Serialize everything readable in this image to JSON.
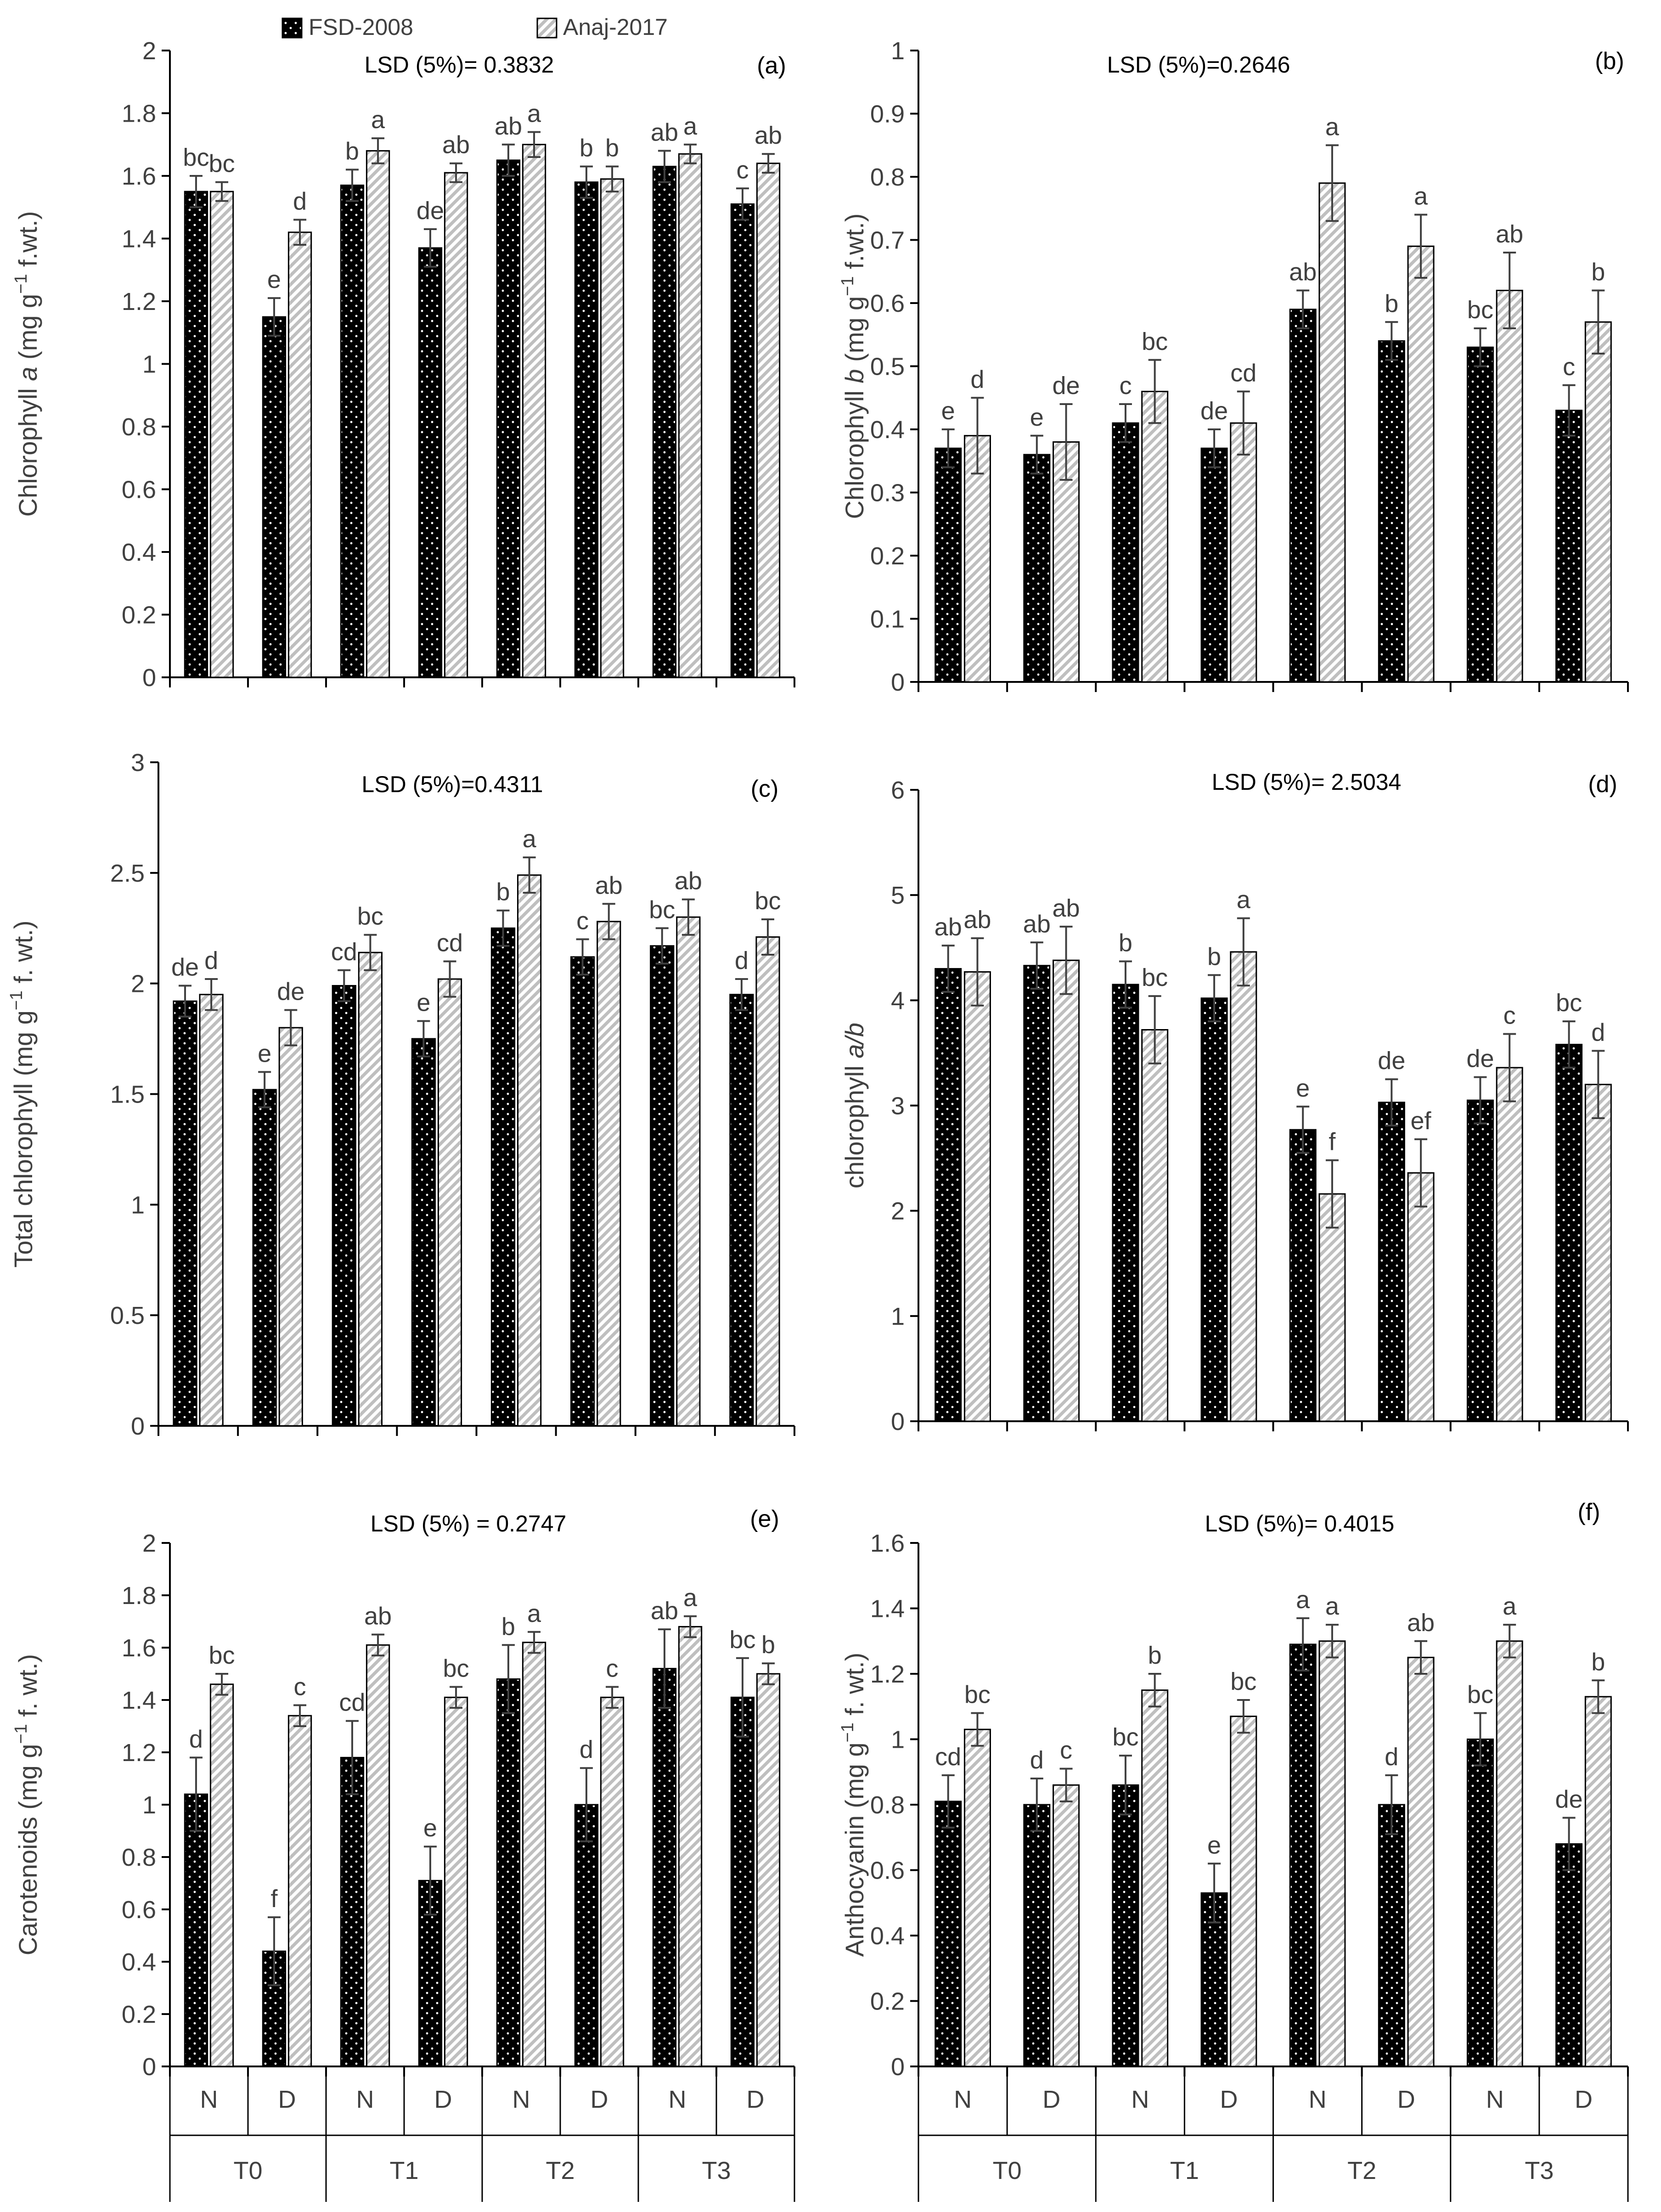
{
  "legend": {
    "series_a": "FSD-2008",
    "series_b": "Anaj-2017"
  },
  "colors": {
    "fsd_fill": "#000000",
    "anaj_fill": "#bfbfbf",
    "axis": "#000000",
    "text": "#404040"
  },
  "category_axis": {
    "treatments": [
      "N",
      "D",
      "N",
      "D",
      "N",
      "D",
      "N",
      "D"
    ],
    "groups": [
      "T0",
      "T1",
      "T2",
      "T3"
    ]
  },
  "chart_data": [
    {
      "id": "a",
      "type": "bar",
      "panel_label": "(a)",
      "lsd": "LSD (5%)= 0.3832",
      "ylabel_pre": "Chlorophyll ",
      "ylabel_ital": "a",
      "ylabel_post": " (mg g",
      "ylabel_sup": "−1",
      "ylabel_end": " f.wt.)",
      "ylim": [
        0,
        2
      ],
      "ticks": [
        "0",
        "0.2",
        "0.4",
        "0.6",
        "0.8",
        "1",
        "1.2",
        "1.4",
        "1.6",
        "1.8",
        "2"
      ],
      "categories": [
        "T0-N",
        "T0-D",
        "T1-N",
        "T1-D",
        "T2-N",
        "T2-D",
        "T3-N",
        "T3-D"
      ],
      "series": [
        {
          "name": "FSD-2008",
          "values": [
            1.55,
            1.15,
            1.57,
            1.37,
            1.65,
            1.58,
            1.63,
            1.51
          ],
          "errors": [
            0.05,
            0.06,
            0.05,
            0.06,
            0.05,
            0.05,
            0.05,
            0.05
          ],
          "letters": [
            "bc",
            "e",
            "b",
            "de",
            "ab",
            "b",
            "ab",
            "c"
          ]
        },
        {
          "name": "Anaj-2017",
          "values": [
            1.55,
            1.42,
            1.68,
            1.61,
            1.7,
            1.59,
            1.67,
            1.64
          ],
          "errors": [
            0.03,
            0.04,
            0.04,
            0.03,
            0.04,
            0.04,
            0.03,
            0.03
          ],
          "letters": [
            "bc",
            "d",
            "a",
            "ab",
            "a",
            "b",
            "a",
            "ab"
          ]
        }
      ]
    },
    {
      "id": "b",
      "type": "bar",
      "panel_label": "(b)",
      "lsd": "LSD (5%)=0.2646",
      "ylabel_pre": "Chlorophyll ",
      "ylabel_ital": "b",
      "ylabel_post": " (mg g",
      "ylabel_sup": "−1",
      "ylabel_end": " f.wt.)",
      "ylim": [
        0,
        1
      ],
      "ticks": [
        "0",
        "0.1",
        "0.2",
        "0.3",
        "0.4",
        "0.5",
        "0.6",
        "0.7",
        "0.8",
        "0.9",
        "1"
      ],
      "categories": [
        "T0-N",
        "T0-D",
        "T1-N",
        "T1-D",
        "T2-N",
        "T2-D",
        "T3-N",
        "T3-D"
      ],
      "series": [
        {
          "name": "FSD-2008",
          "values": [
            0.37,
            0.36,
            0.41,
            0.37,
            0.59,
            0.54,
            0.53,
            0.43
          ],
          "errors": [
            0.03,
            0.03,
            0.03,
            0.03,
            0.03,
            0.03,
            0.03,
            0.04
          ],
          "letters": [
            "e",
            "e",
            "c",
            "de",
            "ab",
            "b",
            "bc",
            "c"
          ]
        },
        {
          "name": "Anaj-2017",
          "values": [
            0.39,
            0.38,
            0.46,
            0.41,
            0.79,
            0.69,
            0.62,
            0.57
          ],
          "errors": [
            0.06,
            0.06,
            0.05,
            0.05,
            0.06,
            0.05,
            0.06,
            0.05
          ],
          "letters": [
            "d",
            "de",
            "bc",
            "cd",
            "a",
            "a",
            "ab",
            "b"
          ]
        }
      ]
    },
    {
      "id": "c",
      "type": "bar",
      "panel_label": "(c)",
      "lsd": "LSD (5%)=0.4311",
      "ylabel_pre": "Total chlorophyll (mg g",
      "ylabel_ital": "",
      "ylabel_post": "",
      "ylabel_sup": "−1",
      "ylabel_end": " f. wt.)",
      "ylim": [
        0,
        3
      ],
      "ticks": [
        "0",
        "0.5",
        "1",
        "1.5",
        "2",
        "2.5",
        "3"
      ],
      "categories": [
        "T0-N",
        "T0-D",
        "T1-N",
        "T1-D",
        "T2-N",
        "T2-D",
        "T3-N",
        "T3-D"
      ],
      "series": [
        {
          "name": "FSD-2008",
          "values": [
            1.92,
            1.52,
            1.99,
            1.75,
            2.25,
            2.12,
            2.17,
            1.95
          ],
          "errors": [
            0.07,
            0.08,
            0.07,
            0.08,
            0.08,
            0.08,
            0.08,
            0.07
          ],
          "letters": [
            "de",
            "e",
            "cd",
            "e",
            "b",
            "c",
            "bc",
            "d"
          ]
        },
        {
          "name": "Anaj-2017",
          "values": [
            1.95,
            1.8,
            2.14,
            2.02,
            2.49,
            2.28,
            2.3,
            2.21
          ],
          "errors": [
            0.07,
            0.08,
            0.08,
            0.08,
            0.08,
            0.08,
            0.08,
            0.08
          ],
          "letters": [
            "d",
            "de",
            "bc",
            "cd",
            "a",
            "ab",
            "ab",
            "bc"
          ]
        }
      ]
    },
    {
      "id": "d",
      "type": "bar",
      "panel_label": "(d)",
      "lsd": "LSD (5%)= 2.5034",
      "ylabel_pre": "chlorophyll ",
      "ylabel_ital": "a/b",
      "ylabel_post": "",
      "ylabel_sup": "",
      "ylabel_end": "",
      "ylim": [
        0,
        6
      ],
      "ticks": [
        "0",
        "1",
        "2",
        "3",
        "4",
        "5",
        "6"
      ],
      "categories": [
        "T0-N",
        "T0-D",
        "T1-N",
        "T1-D",
        "T2-N",
        "T2-D",
        "T3-N",
        "T3-D"
      ],
      "series": [
        {
          "name": "FSD-2008",
          "values": [
            4.3,
            4.33,
            4.15,
            4.02,
            2.77,
            3.03,
            3.05,
            3.58
          ],
          "errors": [
            0.22,
            0.22,
            0.22,
            0.22,
            0.22,
            0.22,
            0.22,
            0.22
          ],
          "letters": [
            "ab",
            "ab",
            "b",
            "b",
            "e",
            "de",
            "de",
            "bc"
          ]
        },
        {
          "name": "Anaj-2017",
          "values": [
            4.27,
            4.38,
            3.72,
            4.46,
            2.16,
            2.36,
            3.36,
            3.2
          ],
          "errors": [
            0.32,
            0.32,
            0.32,
            0.32,
            0.32,
            0.32,
            0.32,
            0.32
          ],
          "letters": [
            "ab",
            "ab",
            "bc",
            "a",
            "f",
            "ef",
            "c",
            "d"
          ]
        }
      ]
    },
    {
      "id": "e",
      "type": "bar",
      "panel_label": "(e)",
      "lsd": "LSD (5%) = 0.2747",
      "ylabel_pre": "Carotenoids (mg g",
      "ylabel_ital": "",
      "ylabel_post": "",
      "ylabel_sup": "−1",
      "ylabel_end": " f. wt.)",
      "ylim": [
        0,
        2
      ],
      "ticks": [
        "0",
        "0.2",
        "0.4",
        "0.6",
        "0.8",
        "1",
        "1.2",
        "1.4",
        "1.6",
        "1.8",
        "2"
      ],
      "categories": [
        "T0-N",
        "T0-D",
        "T1-N",
        "T1-D",
        "T2-N",
        "T2-D",
        "T3-N",
        "T3-D"
      ],
      "series": [
        {
          "name": "FSD-2008",
          "values": [
            1.04,
            0.44,
            1.18,
            0.71,
            1.48,
            1.0,
            1.52,
            1.41
          ],
          "errors": [
            0.14,
            0.13,
            0.14,
            0.13,
            0.13,
            0.14,
            0.15,
            0.15
          ],
          "letters": [
            "d",
            "f",
            "cd",
            "e",
            "b",
            "d",
            "ab",
            "bc"
          ]
        },
        {
          "name": "Anaj-2017",
          "values": [
            1.46,
            1.34,
            1.61,
            1.41,
            1.62,
            1.41,
            1.68,
            1.5
          ],
          "errors": [
            0.04,
            0.04,
            0.04,
            0.04,
            0.04,
            0.04,
            0.04,
            0.04
          ],
          "letters": [
            "bc",
            "c",
            "ab",
            "bc",
            "a",
            "c",
            "a",
            "b"
          ]
        }
      ]
    },
    {
      "id": "f",
      "type": "bar",
      "panel_label": "(f)",
      "lsd": "LSD (5%)= 0.4015",
      "ylabel_pre": "Anthocyanin (mg g",
      "ylabel_ital": "",
      "ylabel_post": "",
      "ylabel_sup": "−1",
      "ylabel_end": " f. wt.)",
      "ylim": [
        0,
        1.6
      ],
      "ticks": [
        "0",
        "0.2",
        "0.4",
        "0.6",
        "0.8",
        "1",
        "1.2",
        "1.4",
        "1.6"
      ],
      "categories": [
        "T0-N",
        "T0-D",
        "T1-N",
        "T1-D",
        "T2-N",
        "T2-D",
        "T3-N",
        "T3-D"
      ],
      "series": [
        {
          "name": "FSD-2008",
          "values": [
            0.81,
            0.8,
            0.86,
            0.53,
            1.29,
            0.8,
            1.0,
            0.68
          ],
          "errors": [
            0.08,
            0.08,
            0.09,
            0.09,
            0.08,
            0.09,
            0.08,
            0.08
          ],
          "letters": [
            "cd",
            "d",
            "bc",
            "e",
            "a",
            "d",
            "bc",
            "de"
          ]
        },
        {
          "name": "Anaj-2017",
          "values": [
            1.03,
            0.86,
            1.15,
            1.07,
            1.3,
            1.25,
            1.3,
            1.13
          ],
          "errors": [
            0.05,
            0.05,
            0.05,
            0.05,
            0.05,
            0.05,
            0.05,
            0.05
          ],
          "letters": [
            "bc",
            "c",
            "b",
            "bc",
            "a",
            "ab",
            "a",
            "b"
          ]
        }
      ]
    }
  ]
}
